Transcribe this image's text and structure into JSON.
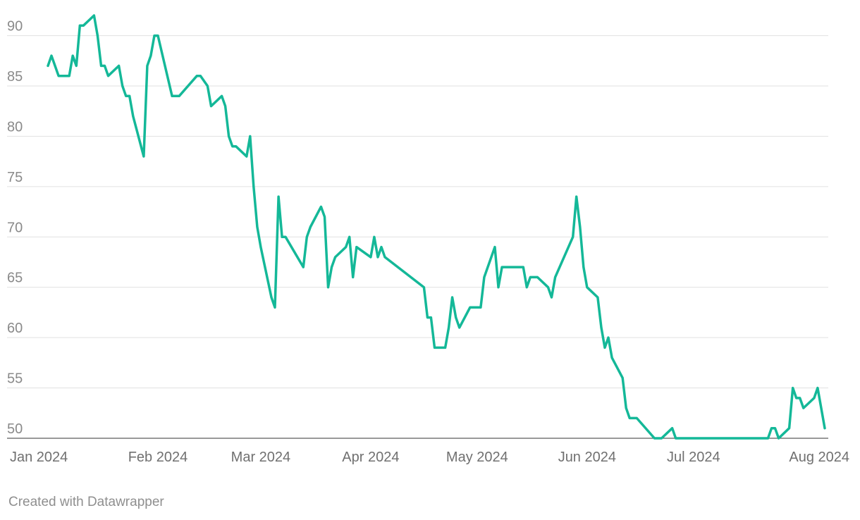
{
  "chart_data": {
    "type": "line",
    "title": "",
    "xlabel": "",
    "ylabel": "",
    "ylim": [
      50,
      92
    ],
    "y_ticks": [
      50,
      55,
      60,
      65,
      70,
      75,
      80,
      85,
      90
    ],
    "x_ticks": [
      {
        "date": "2024-01-01",
        "label": "Jan 2024"
      },
      {
        "date": "2024-02-01",
        "label": "Feb 2024"
      },
      {
        "date": "2024-03-01",
        "label": "Mar 2024"
      },
      {
        "date": "2024-04-01",
        "label": "Apr 2024"
      },
      {
        "date": "2024-05-01",
        "label": "May 2024"
      },
      {
        "date": "2024-06-01",
        "label": "Jun 2024"
      },
      {
        "date": "2024-07-01",
        "label": "Jul 2024"
      },
      {
        "date": "2024-08-01",
        "label": "Aug 2024"
      }
    ],
    "grid": true,
    "legend": "none",
    "series": [
      {
        "color": "#14b898",
        "points": [
          [
            "2024-01-01",
            87
          ],
          [
            "2024-01-02",
            88
          ],
          [
            "2024-01-04",
            86
          ],
          [
            "2024-01-07",
            86
          ],
          [
            "2024-01-08",
            88
          ],
          [
            "2024-01-09",
            87
          ],
          [
            "2024-01-10",
            91
          ],
          [
            "2024-01-11",
            91
          ],
          [
            "2024-01-14",
            92
          ],
          [
            "2024-01-15",
            90
          ],
          [
            "2024-01-16",
            87
          ],
          [
            "2024-01-17",
            87
          ],
          [
            "2024-01-18",
            86
          ],
          [
            "2024-01-21",
            87
          ],
          [
            "2024-01-22",
            85
          ],
          [
            "2024-01-23",
            84
          ],
          [
            "2024-01-24",
            84
          ],
          [
            "2024-01-25",
            82
          ],
          [
            "2024-01-28",
            78
          ],
          [
            "2024-01-29",
            87
          ],
          [
            "2024-01-30",
            88
          ],
          [
            "2024-01-31",
            90
          ],
          [
            "2024-02-01",
            90
          ],
          [
            "2024-02-05",
            84
          ],
          [
            "2024-02-07",
            84
          ],
          [
            "2024-02-12",
            86
          ],
          [
            "2024-02-13",
            86
          ],
          [
            "2024-02-15",
            85
          ],
          [
            "2024-02-16",
            83
          ],
          [
            "2024-02-19",
            84
          ],
          [
            "2024-02-20",
            83
          ],
          [
            "2024-02-21",
            80
          ],
          [
            "2024-02-22",
            79
          ],
          [
            "2024-02-23",
            79
          ],
          [
            "2024-02-26",
            78
          ],
          [
            "2024-02-27",
            80
          ],
          [
            "2024-02-28",
            75
          ],
          [
            "2024-02-29",
            71
          ],
          [
            "2024-03-01",
            69
          ],
          [
            "2024-03-04",
            64
          ],
          [
            "2024-03-05",
            63
          ],
          [
            "2024-03-06",
            74
          ],
          [
            "2024-03-07",
            70
          ],
          [
            "2024-03-08",
            70
          ],
          [
            "2024-03-13",
            67
          ],
          [
            "2024-03-14",
            70
          ],
          [
            "2024-03-15",
            71
          ],
          [
            "2024-03-18",
            73
          ],
          [
            "2024-03-19",
            72
          ],
          [
            "2024-03-20",
            65
          ],
          [
            "2024-03-21",
            67
          ],
          [
            "2024-03-22",
            68
          ],
          [
            "2024-03-25",
            69
          ],
          [
            "2024-03-26",
            70
          ],
          [
            "2024-03-27",
            66
          ],
          [
            "2024-03-28",
            69
          ],
          [
            "2024-04-01",
            68
          ],
          [
            "2024-04-02",
            70
          ],
          [
            "2024-04-03",
            68
          ],
          [
            "2024-04-04",
            69
          ],
          [
            "2024-04-05",
            68
          ],
          [
            "2024-04-16",
            65
          ],
          [
            "2024-04-17",
            62
          ],
          [
            "2024-04-18",
            62
          ],
          [
            "2024-04-19",
            59
          ],
          [
            "2024-04-22",
            59
          ],
          [
            "2024-04-23",
            61
          ],
          [
            "2024-04-24",
            64
          ],
          [
            "2024-04-25",
            62
          ],
          [
            "2024-04-26",
            61
          ],
          [
            "2024-04-29",
            63
          ],
          [
            "2024-05-02",
            63
          ],
          [
            "2024-05-03",
            66
          ],
          [
            "2024-05-06",
            69
          ],
          [
            "2024-05-07",
            65
          ],
          [
            "2024-05-08",
            67
          ],
          [
            "2024-05-14",
            67
          ],
          [
            "2024-05-15",
            65
          ],
          [
            "2024-05-16",
            66
          ],
          [
            "2024-05-18",
            66
          ],
          [
            "2024-05-21",
            65
          ],
          [
            "2024-05-22",
            64
          ],
          [
            "2024-05-23",
            66
          ],
          [
            "2024-05-28",
            70
          ],
          [
            "2024-05-29",
            74
          ],
          [
            "2024-05-30",
            71
          ],
          [
            "2024-05-31",
            67
          ],
          [
            "2024-06-01",
            65
          ],
          [
            "2024-06-04",
            64
          ],
          [
            "2024-06-05",
            61
          ],
          [
            "2024-06-06",
            59
          ],
          [
            "2024-06-07",
            60
          ],
          [
            "2024-06-08",
            58
          ],
          [
            "2024-06-11",
            56
          ],
          [
            "2024-06-12",
            53
          ],
          [
            "2024-06-13",
            52
          ],
          [
            "2024-06-15",
            52
          ],
          [
            "2024-06-20",
            50
          ],
          [
            "2024-06-22",
            50
          ],
          [
            "2024-06-25",
            51
          ],
          [
            "2024-06-26",
            50
          ],
          [
            "2024-07-22",
            50
          ],
          [
            "2024-07-23",
            51
          ],
          [
            "2024-07-24",
            51
          ],
          [
            "2024-07-25",
            50
          ],
          [
            "2024-07-28",
            51
          ],
          [
            "2024-07-29",
            55
          ],
          [
            "2024-07-30",
            54
          ],
          [
            "2024-07-31",
            54
          ],
          [
            "2024-08-01",
            53
          ],
          [
            "2024-08-04",
            54
          ],
          [
            "2024-08-05",
            55
          ],
          [
            "2024-08-07",
            51
          ]
        ]
      }
    ]
  },
  "footer": {
    "credit": "Created with Datawrapper"
  }
}
